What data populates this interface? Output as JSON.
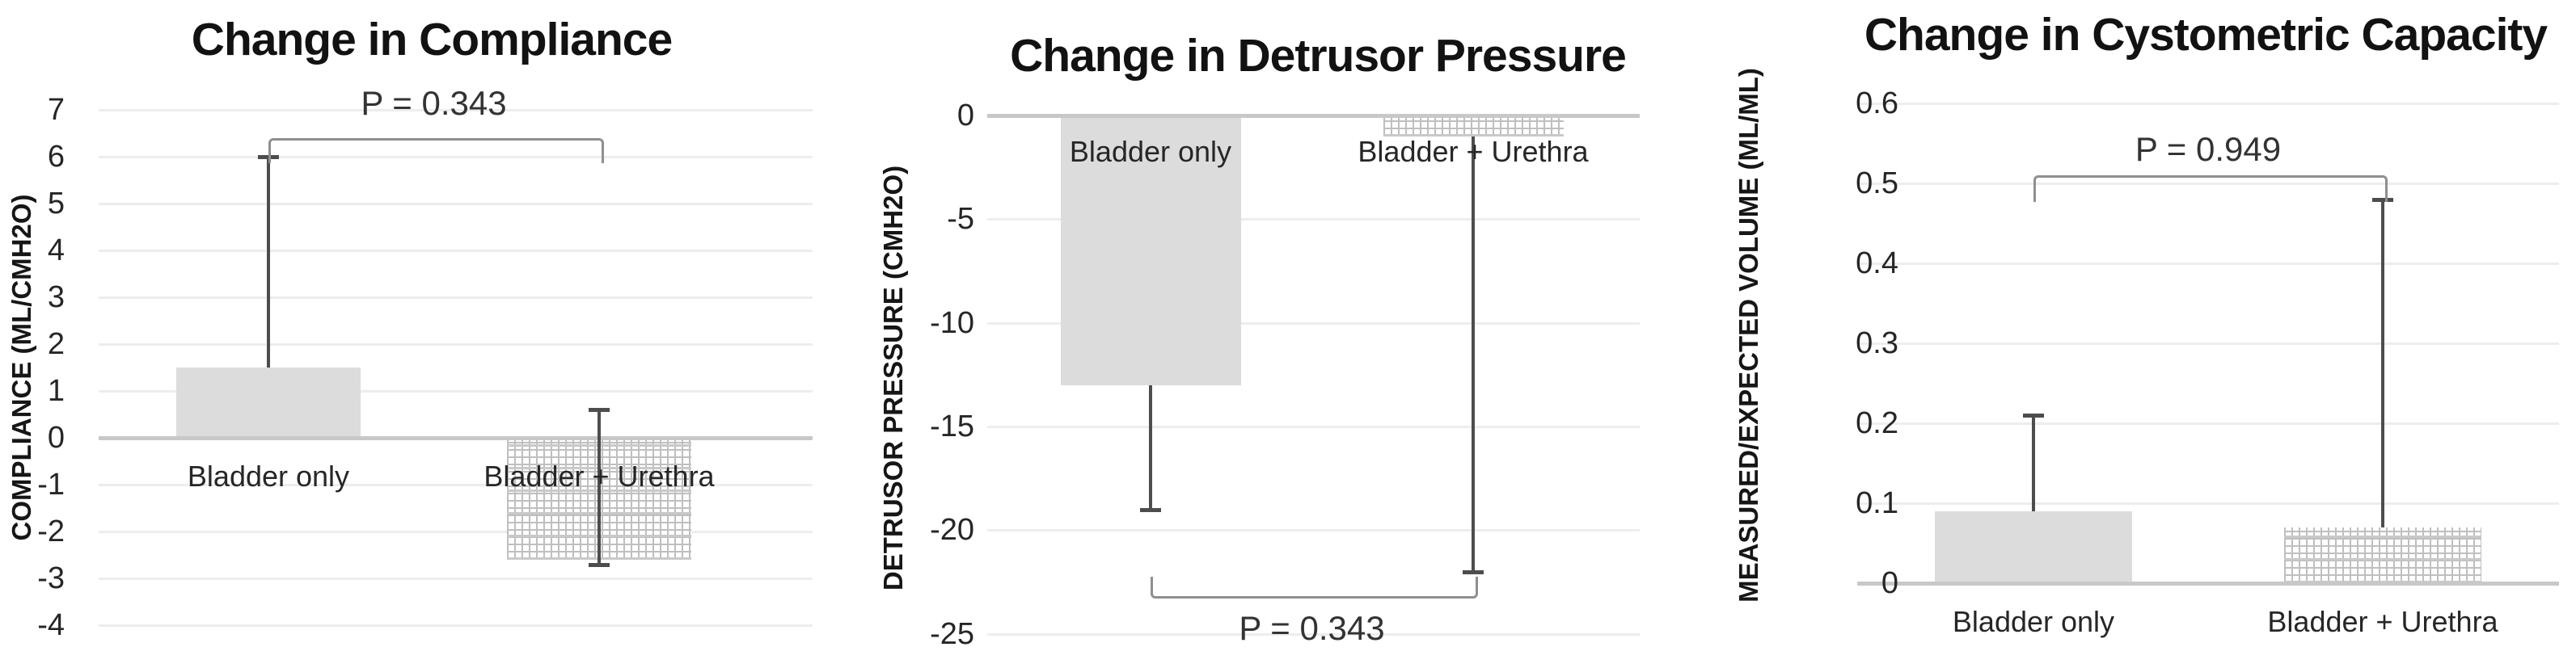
{
  "figure": {
    "description": "Three side-by-side Excel-style bar charts comparing Bladder only vs Bladder + Urethra",
    "background": "#ffffff"
  },
  "colors": {
    "bar_fill": "#dcdcdc",
    "pattern_line": "#bfbfbf",
    "pattern_band": "#c9c9c9",
    "error_bar": "#4d4d4d",
    "bracket": "#8f8f8f",
    "gridline": "#ededed",
    "zero_axis": "#c8c8c8",
    "text": "#262626"
  },
  "chart_data": [
    {
      "type": "bar",
      "title": "Change in Compliance",
      "ylabel": "COMPLIANCE (ML/CMH2O)",
      "xlabel": "",
      "categories": [
        "Bladder only",
        "Bladder + Urethra"
      ],
      "values": [
        1.5,
        -2.6
      ],
      "bar_patterns": [
        "solid",
        "grid"
      ],
      "error_bars": [
        {
          "from": 1.5,
          "to": 6.0,
          "cap_at": [
            6.0
          ]
        },
        {
          "from": 0.6,
          "to": -2.7,
          "cap_at": [
            0.6,
            -2.7
          ]
        }
      ],
      "p_annotation": {
        "text": "P = 0.343",
        "bracket_level": 6.4
      },
      "ylim": [
        -4,
        7
      ],
      "yticks": [
        7,
        6,
        5,
        4,
        3,
        2,
        1,
        0,
        -1,
        -2,
        -3,
        -4
      ],
      "grid": true,
      "legend": "none"
    },
    {
      "type": "bar",
      "title": "Change in Detrusor Pressure",
      "ylabel": "DETRUSOR PRESSURE (CMH2O)",
      "xlabel": "",
      "categories": [
        "Bladder only",
        "Bladder + Urethra"
      ],
      "values": [
        -13,
        -1
      ],
      "bar_patterns": [
        "solid",
        "grid"
      ],
      "error_bars": [
        {
          "from": -13,
          "to": -19,
          "cap_at": [
            -19
          ]
        },
        {
          "from": -1,
          "to": -22,
          "cap_at": [
            -22
          ]
        }
      ],
      "p_annotation": {
        "text": "P = 0.343",
        "bracket_level": -23.2
      },
      "ylim": [
        -25,
        0
      ],
      "yticks": [
        0,
        -5,
        -10,
        -15,
        -20,
        -25
      ],
      "grid": true,
      "legend": "none"
    },
    {
      "type": "bar",
      "title": "Change in Cystometric Capacity",
      "ylabel": "MEASURED/EXPECTED VOLUME (ML/ML)",
      "xlabel": "",
      "categories": [
        "Bladder only",
        "Bladder + Urethra"
      ],
      "values": [
        0.09,
        0.07
      ],
      "bar_patterns": [
        "solid",
        "grid"
      ],
      "error_bars": [
        {
          "from": 0.09,
          "to": 0.21,
          "cap_at": [
            0.21
          ]
        },
        {
          "from": 0.07,
          "to": 0.48,
          "cap_at": [
            0.48
          ]
        }
      ],
      "p_annotation": {
        "text": "P = 0.949",
        "bracket_level": 0.51
      },
      "ylim": [
        0,
        0.6
      ],
      "yticks": [
        0.6,
        0.5,
        0.4,
        0.3,
        0.2,
        0.1,
        0
      ],
      "grid": true,
      "legend": "none"
    }
  ]
}
